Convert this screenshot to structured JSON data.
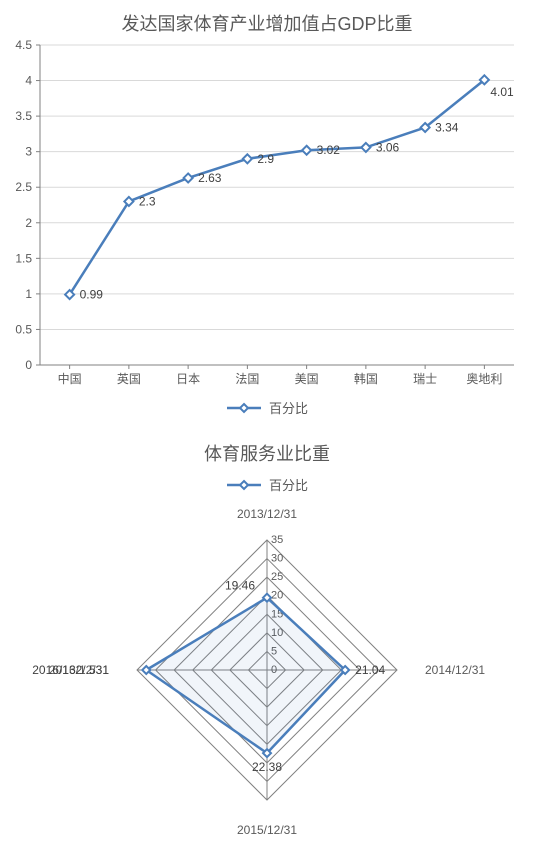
{
  "line_chart": {
    "type": "line",
    "title": "发达国家体育产业增加值占GDP比重",
    "title_fontsize": 18,
    "title_color": "#595959",
    "categories": [
      "中国",
      "英国",
      "日本",
      "法国",
      "美国",
      "韩国",
      "瑞士",
      "奥地利"
    ],
    "values": [
      0.99,
      2.3,
      2.63,
      2.9,
      3.02,
      3.06,
      3.34,
      4.01
    ],
    "line_color": "#4a7ebb",
    "marker_style": "diamond",
    "marker_size": 7,
    "marker_fill": "#ffffff",
    "ylim": [
      0,
      4.5
    ],
    "ytick_step": 0.5,
    "axis_color": "#808080",
    "grid_color": "#d9d9d9",
    "label_fontsize": 12,
    "label_color": "#595959",
    "datalabel_fontsize": 12,
    "datalabel_color": "#404040",
    "background_color": "#ffffff",
    "legend": {
      "label": "百分比",
      "position": "bottom"
    }
  },
  "radar_chart": {
    "type": "radar",
    "title": "体育服务业比重",
    "title_fontsize": 18,
    "title_color": "#595959",
    "categories": [
      "2013/12/31",
      "2014/12/31",
      "2015/12/31",
      "2016/12/31"
    ],
    "values": [
      19.46,
      21.04,
      22.38,
      32.51
    ],
    "display_labels": [
      "19.46",
      "21.04",
      "22.38",
      "2016/132/.531"
    ],
    "line_color": "#4a7ebb",
    "fill_color": "#4a7ebb",
    "fill_opacity": 0.08,
    "marker_style": "diamond",
    "marker_size": 6,
    "rlim": [
      0,
      35
    ],
    "rtick_step": 5,
    "grid_color": "#808080",
    "label_fontsize": 12,
    "label_color": "#595959",
    "background_color": "#ffffff",
    "legend": {
      "label": "百分比",
      "position": "top"
    }
  }
}
